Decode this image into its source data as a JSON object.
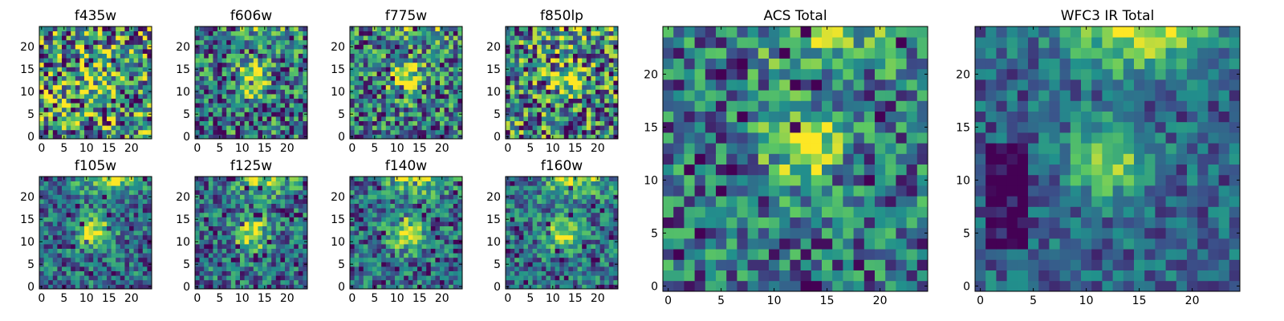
{
  "chart_data": [
    {
      "type": "heatmap",
      "title": "f435w",
      "xlim": [
        0,
        25
      ],
      "ylim": [
        0,
        25
      ],
      "xticks": [
        0,
        5,
        10,
        15,
        20
      ],
      "yticks": [
        0,
        5,
        10,
        15,
        20
      ],
      "seed": 11,
      "blob": [
        12,
        13,
        0.25
      ],
      "topRidge": 0.05,
      "noise": 0.55,
      "dark": 0.07,
      "shift": 0.52
    },
    {
      "type": "heatmap",
      "title": "f606w",
      "xlim": [
        0,
        25
      ],
      "ylim": [
        0,
        25
      ],
      "xticks": [
        0,
        5,
        10,
        15,
        20
      ],
      "yticks": [
        0,
        5,
        10,
        15,
        20
      ],
      "seed": 23,
      "blob": [
        12,
        13,
        0.55
      ],
      "topRidge": 0.35,
      "noise": 0.42,
      "dark": 0.05,
      "shift": 0.4
    },
    {
      "type": "heatmap",
      "title": "f775w",
      "xlim": [
        0,
        25
      ],
      "ylim": [
        0,
        25
      ],
      "xticks": [
        0,
        5,
        10,
        15,
        20
      ],
      "yticks": [
        0,
        5,
        10,
        15,
        20
      ],
      "seed": 37,
      "blob": [
        12,
        13,
        0.6
      ],
      "topRidge": 0.35,
      "noise": 0.42,
      "dark": 0.06,
      "shift": 0.42
    },
    {
      "type": "heatmap",
      "title": "f850lp",
      "xlim": [
        0,
        25
      ],
      "ylim": [
        0,
        25
      ],
      "xticks": [
        0,
        5,
        10,
        15,
        20
      ],
      "yticks": [
        0,
        5,
        10,
        15,
        20
      ],
      "seed": 41,
      "blob": [
        13,
        13,
        0.45
      ],
      "topRidge": 0.3,
      "noise": 0.5,
      "dark": 0.07,
      "shift": 0.46
    },
    {
      "type": "heatmap",
      "title": "f105w",
      "xlim": [
        0,
        25
      ],
      "ylim": [
        0,
        25
      ],
      "xticks": [
        0,
        5,
        10,
        15,
        20
      ],
      "yticks": [
        0,
        5,
        10,
        15,
        20
      ],
      "seed": 53,
      "blob": [
        12,
        12,
        0.6
      ],
      "topRidge": 0.6,
      "noise": 0.3,
      "dark": 0.04,
      "shift": 0.35
    },
    {
      "type": "heatmap",
      "title": "f125w",
      "xlim": [
        0,
        25
      ],
      "ylim": [
        0,
        25
      ],
      "xticks": [
        0,
        5,
        10,
        15,
        20
      ],
      "yticks": [
        0,
        5,
        10,
        15,
        20
      ],
      "seed": 67,
      "blob": [
        12,
        12,
        0.6
      ],
      "topRidge": 0.6,
      "noise": 0.32,
      "dark": 0.04,
      "shift": 0.36
    },
    {
      "type": "heatmap",
      "title": "f140w",
      "xlim": [
        0,
        25
      ],
      "ylim": [
        0,
        25
      ],
      "xticks": [
        0,
        5,
        10,
        15,
        20
      ],
      "yticks": [
        0,
        5,
        10,
        15,
        20
      ],
      "seed": 71,
      "blob": [
        12,
        12,
        0.55
      ],
      "topRidge": 0.6,
      "noise": 0.32,
      "dark": 0.05,
      "shift": 0.36
    },
    {
      "type": "heatmap",
      "title": "f160w",
      "xlim": [
        0,
        25
      ],
      "ylim": [
        0,
        25
      ],
      "xticks": [
        0,
        5,
        10,
        15,
        20
      ],
      "yticks": [
        0,
        5,
        10,
        15,
        20
      ],
      "seed": 83,
      "blob": [
        12,
        12,
        0.5
      ],
      "topRidge": 0.55,
      "noise": 0.3,
      "dark": 0.04,
      "shift": 0.38
    },
    {
      "type": "heatmap",
      "title": "ACS Total",
      "xlim": [
        0,
        25
      ],
      "ylim": [
        0,
        25
      ],
      "xticks": [
        0,
        5,
        10,
        15,
        20
      ],
      "yticks": [
        0,
        5,
        10,
        15,
        20
      ],
      "seed": 97,
      "blob": [
        13,
        13,
        0.55
      ],
      "topRidge": 0.45,
      "noise": 0.35,
      "dark": 0.04,
      "shift": 0.38
    },
    {
      "type": "heatmap",
      "title": "WFC3 IR Total",
      "xlim": [
        0,
        25
      ],
      "ylim": [
        0,
        25
      ],
      "xticks": [
        0,
        5,
        10,
        15,
        20
      ],
      "yticks": [
        0,
        5,
        10,
        15,
        20
      ],
      "seed": 101,
      "blob": [
        12,
        12,
        0.5
      ],
      "topRidge": 0.75,
      "noise": 0.22,
      "dark": 0.0,
      "shift": 0.32,
      "darkStrip": true
    }
  ],
  "colormap": [
    "#440154",
    "#3b528b",
    "#21918c",
    "#5ec962",
    "#fde725"
  ]
}
